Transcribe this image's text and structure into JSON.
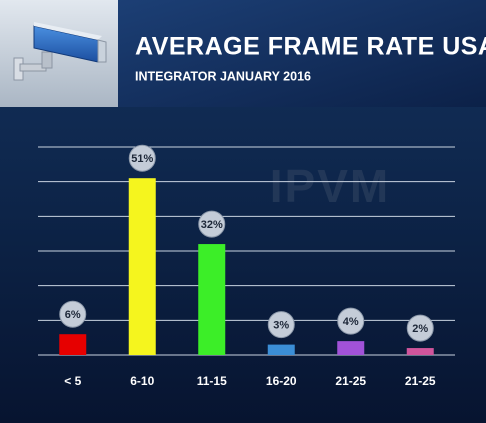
{
  "chart_data": {
    "type": "bar",
    "title": "AVERAGE FRAME RATE USAGE",
    "subtitle": "INTEGRATOR JANUARY 2016",
    "watermark": "IPVM",
    "categories": [
      "< 5",
      "6-10",
      "11-15",
      "16-20",
      "21-25",
      "21-25"
    ],
    "values": [
      6,
      51,
      32,
      3,
      4,
      2
    ],
    "value_labels": [
      "6%",
      "51%",
      "32%",
      "3%",
      "4%",
      "2%"
    ],
    "colors": [
      "#e60000",
      "#f5f51e",
      "#3cee28",
      "#3b8ed6",
      "#a152d8",
      "#d0559c"
    ],
    "ylim": [
      0,
      60
    ],
    "yticks": [
      0,
      10,
      20,
      30,
      40,
      50,
      60
    ],
    "grid": true
  }
}
